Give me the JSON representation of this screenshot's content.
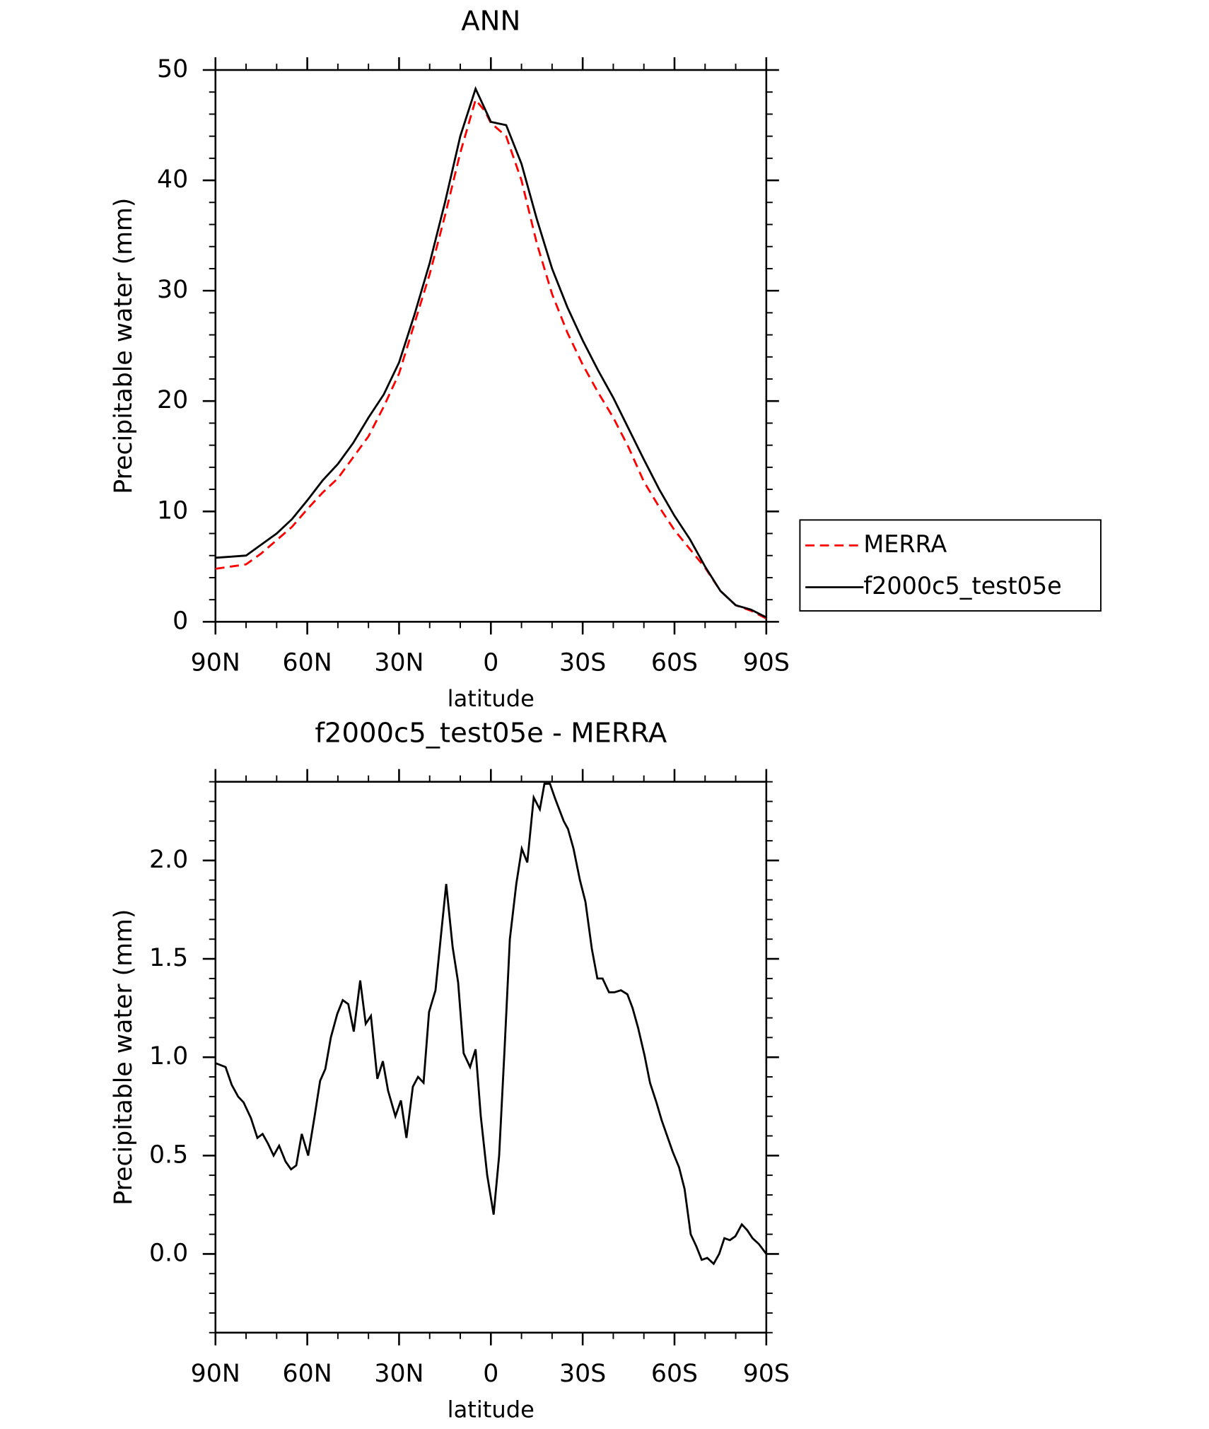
{
  "chart_data": [
    {
      "type": "line",
      "title": "ANN",
      "xlabel": "latitude",
      "ylabel": "Precipitable water (mm)",
      "x": [
        90,
        85,
        80,
        75,
        70,
        65,
        60,
        55,
        50,
        45,
        40,
        35,
        30,
        25,
        20,
        15,
        10,
        5,
        2,
        0,
        -5,
        -10,
        -15,
        -20,
        -25,
        -30,
        -35,
        -40,
        -45,
        -50,
        -55,
        -60,
        -65,
        -70,
        -75,
        -80,
        -85,
        -90
      ],
      "series": [
        {
          "name": "MERRA",
          "color": "#ff0000",
          "style": "dashed",
          "values": [
            4.8,
            5.0,
            5.2,
            6.2,
            7.4,
            8.6,
            10.2,
            11.7,
            13.0,
            14.9,
            16.8,
            19.5,
            22.5,
            27.0,
            31.5,
            36.8,
            42.5,
            47.3,
            46.3,
            45.2,
            44.0,
            40.0,
            34.3,
            29.7,
            26.2,
            23.3,
            20.8,
            18.5,
            15.8,
            12.7,
            10.4,
            8.3,
            6.6,
            4.9,
            2.8,
            1.5,
            1.0,
            0.3
          ]
        },
        {
          "name": "f2000c5_test05e",
          "color": "#000000",
          "style": "solid",
          "values": [
            5.8,
            5.9,
            6.0,
            7.0,
            8.0,
            9.3,
            11.0,
            12.8,
            14.3,
            16.2,
            18.5,
            20.6,
            23.5,
            27.8,
            32.5,
            38.0,
            44.0,
            48.3,
            46.5,
            45.3,
            45.0,
            41.5,
            36.5,
            32.0,
            28.5,
            25.5,
            22.8,
            20.3,
            17.5,
            14.7,
            12.0,
            9.6,
            7.5,
            5.0,
            2.8,
            1.5,
            1.1,
            0.4
          ]
        }
      ],
      "xlim": [
        90,
        -90
      ],
      "xticks": [
        {
          "value": 90,
          "label": "90N"
        },
        {
          "value": 60,
          "label": "60N"
        },
        {
          "value": 30,
          "label": "30N"
        },
        0,
        {
          "value": -30,
          "label": "30S"
        },
        {
          "value": -60,
          "label": "60S"
        },
        {
          "value": -90,
          "label": "90S"
        }
      ],
      "ylim": [
        0,
        50
      ],
      "yticks": [
        0,
        10,
        20,
        30,
        40,
        50
      ],
      "legend": "right"
    },
    {
      "type": "line",
      "title": "f2000c5_test05e - MERRA",
      "xlabel": "latitude",
      "ylabel": "Precipitable water (mm)",
      "x": [
        90,
        86.7,
        84.7,
        82.6,
        80.8,
        78.4,
        76.3,
        74.6,
        72.8,
        71.0,
        69.2,
        67.1,
        65.3,
        63.6,
        61.8,
        59.7,
        57.6,
        55.8,
        54.1,
        52.3,
        50.2,
        48.4,
        46.6,
        44.8,
        42.7,
        40.9,
        39.2,
        37.1,
        35.3,
        33.6,
        31.2,
        29.4,
        27.6,
        25.5,
        23.8,
        22.0,
        20.2,
        18.1,
        16.3,
        14.6,
        12.5,
        10.7,
        8.9,
        6.8,
        5.0,
        3.3,
        1.2,
        -0.9,
        -2.7,
        -4.5,
        -6.2,
        -8.3,
        -10.1,
        -11.9,
        -14.0,
        -16.0,
        -17.5,
        -19.3,
        -21.1,
        -23.8,
        -25.2,
        -27.0,
        -29.1,
        -30.9,
        -33.0,
        -34.8,
        -36.5,
        -38.6,
        -40.4,
        -42.5,
        -44.6,
        -46.3,
        -48.1,
        -50.2,
        -52.0,
        -54.1,
        -55.8,
        -57.6,
        -59.4,
        -61.5,
        -63.3,
        -65.3,
        -67.1,
        -68.9,
        -70.7,
        -72.8,
        -74.6,
        -76.3,
        -78.1,
        -79.9,
        -82.0,
        -83.8,
        -85.5,
        -87.6,
        -90
      ],
      "series": [
        {
          "color": "#000000",
          "style": "solid",
          "values": [
            0.97,
            0.95,
            0.86,
            0.8,
            0.77,
            0.69,
            0.59,
            0.61,
            0.56,
            0.5,
            0.55,
            0.47,
            0.43,
            0.45,
            0.61,
            0.5,
            0.7,
            0.88,
            0.94,
            1.1,
            1.22,
            1.29,
            1.27,
            1.13,
            1.39,
            1.17,
            1.21,
            0.89,
            0.98,
            0.83,
            0.7,
            0.78,
            0.59,
            0.85,
            0.9,
            0.87,
            1.23,
            1.34,
            1.62,
            1.88,
            1.56,
            1.38,
            1.02,
            0.95,
            1.04,
            0.7,
            0.4,
            0.2,
            0.5,
            1.05,
            1.6,
            1.88,
            2.06,
            1.99,
            2.32,
            2.26,
            2.39,
            2.39,
            2.31,
            2.2,
            2.16,
            2.06,
            1.9,
            1.79,
            1.55,
            1.4,
            1.4,
            1.33,
            1.33,
            1.34,
            1.32,
            1.25,
            1.15,
            1.01,
            0.87,
            0.77,
            0.68,
            0.6,
            0.52,
            0.44,
            0.33,
            0.1,
            0.04,
            -0.03,
            -0.02,
            -0.05,
            0.0,
            0.08,
            0.07,
            0.09,
            0.15,
            0.12,
            0.08,
            0.05,
            0.0
          ]
        }
      ],
      "xlim": [
        90,
        -90
      ],
      "xticks": [
        {
          "value": 90,
          "label": "90N"
        },
        {
          "value": 60,
          "label": "60N"
        },
        {
          "value": 30,
          "label": "30N"
        },
        0,
        {
          "value": -30,
          "label": "30S"
        },
        {
          "value": -60,
          "label": "60S"
        },
        {
          "value": -90,
          "label": "90S"
        }
      ],
      "ylim": [
        -0.4,
        2.4
      ],
      "yticks": [
        {
          "value": 0,
          "label": "0.0"
        },
        0.5,
        {
          "value": 1,
          "label": "1.0"
        },
        1.5,
        {
          "value": 2,
          "label": "2.0"
        }
      ]
    }
  ]
}
